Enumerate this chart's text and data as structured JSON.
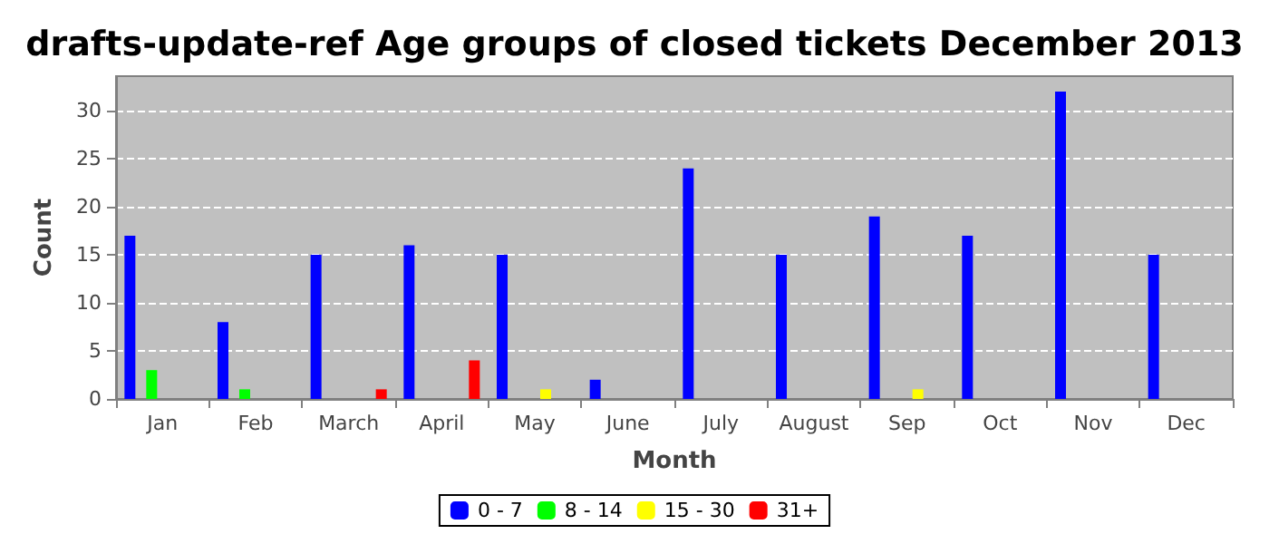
{
  "chart_data": {
    "type": "bar",
    "title": "drafts-update-ref Age groups of closed tickets December 2013",
    "xlabel": "Month",
    "ylabel": "Count",
    "categories": [
      "Jan",
      "Feb",
      "March",
      "April",
      "May",
      "June",
      "July",
      "August",
      "Sep",
      "Oct",
      "Nov",
      "Dec"
    ],
    "series": [
      {
        "name": "0 - 7",
        "color": "#0000ff",
        "values": [
          17,
          8,
          15,
          16,
          15,
          2,
          24,
          15,
          19,
          17,
          32,
          15
        ]
      },
      {
        "name": "8 - 14",
        "color": "#00ff00",
        "values": [
          3,
          1,
          null,
          null,
          null,
          null,
          null,
          null,
          null,
          null,
          null,
          null
        ]
      },
      {
        "name": "15 - 30",
        "color": "#ffff00",
        "values": [
          null,
          null,
          null,
          null,
          1,
          null,
          null,
          null,
          1,
          null,
          null,
          null
        ]
      },
      {
        "name": "31+",
        "color": "#ff0000",
        "values": [
          null,
          null,
          1,
          4,
          null,
          null,
          null,
          null,
          null,
          null,
          null,
          null
        ]
      }
    ],
    "ylim": [
      0,
      33.6
    ],
    "yticks": [
      0,
      5,
      10,
      15,
      20,
      25,
      30
    ],
    "grid": "y",
    "legend": "bottom"
  }
}
